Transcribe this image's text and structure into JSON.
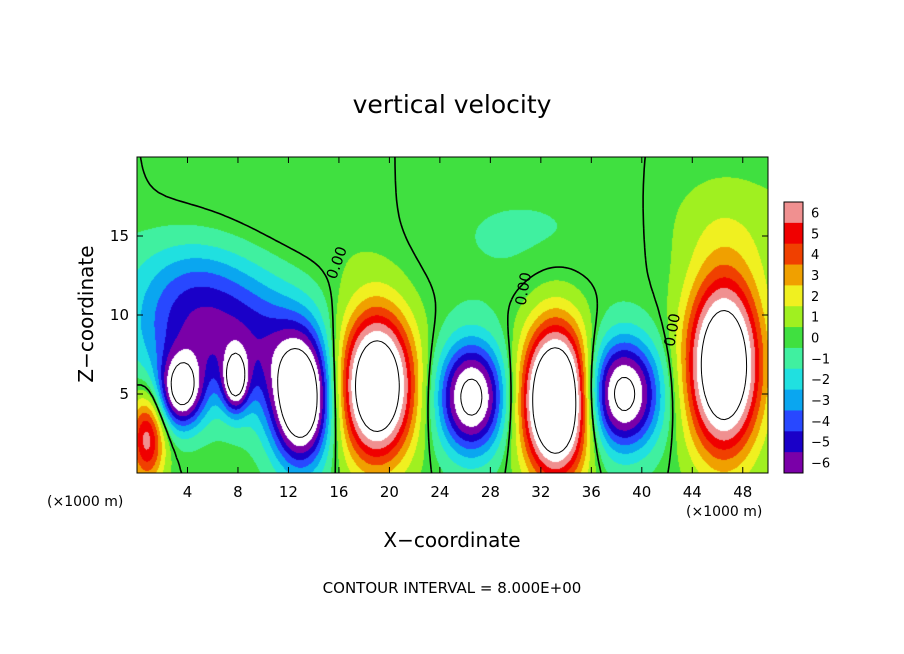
{
  "chart_data": {
    "type": "heatmap",
    "title": "vertical velocity",
    "xlabel": "X−coordinate",
    "ylabel": "Z−coordinate",
    "x_unit_left": "(×1000 m)",
    "x_unit_right": "(×1000 m)",
    "xlim": [
      0,
      50
    ],
    "ylim": [
      0,
      20
    ],
    "xticks": [
      4,
      8,
      12,
      16,
      20,
      24,
      28,
      32,
      36,
      40,
      44,
      48
    ],
    "yticks": [
      5,
      10,
      15
    ],
    "contour_interval_text": "CONTOUR INTERVAL = 8.000E+00",
    "contour_label": "0.00",
    "colorbar": {
      "levels": [
        -6,
        -5,
        -4,
        -3,
        -2,
        -1,
        0,
        1,
        2,
        3,
        4,
        5,
        6
      ],
      "labels": [
        "−6",
        "−5",
        "−4",
        "−3",
        "−2",
        "−1",
        "0",
        "1",
        "2",
        "3",
        "4",
        "5",
        "6"
      ],
      "colors": [
        "#7a00a8",
        "#1a00c8",
        "#2848ff",
        "#0aa6f0",
        "#20e0e0",
        "#40f0a0",
        "#40e040",
        "#a0f020",
        "#f0f020",
        "#f0a000",
        "#f04000",
        "#f00000",
        "#f09090"
      ]
    },
    "features": [
      {
        "kind": "updraft",
        "x": 19.0,
        "z": 5.5,
        "sx": 2.0,
        "sz": 3.2,
        "amp": 12
      },
      {
        "kind": "updraft",
        "x": 33.2,
        "z": 4.6,
        "sx": 1.8,
        "sz": 3.2,
        "amp": 14
      },
      {
        "kind": "updraft",
        "x": 46.5,
        "z": 6.8,
        "sx": 2.0,
        "sz": 3.8,
        "amp": 12
      },
      {
        "kind": "updraft",
        "x": 0.8,
        "z": 2.2,
        "sx": 1.0,
        "sz": 2.0,
        "amp": 6
      },
      {
        "kind": "downdraft",
        "x": 13.0,
        "z": 4.6,
        "sx": 1.6,
        "sz": 2.8,
        "amp": -11
      },
      {
        "kind": "downdraft",
        "x": 26.5,
        "z": 4.8,
        "sx": 1.8,
        "sz": 2.4,
        "amp": -9
      },
      {
        "kind": "downdraft",
        "x": 38.5,
        "z": 5.0,
        "sx": 2.0,
        "sz": 2.4,
        "amp": -9
      },
      {
        "kind": "downdraft",
        "x": 3.5,
        "z": 5.2,
        "sx": 1.2,
        "sz": 1.6,
        "amp": -8
      },
      {
        "kind": "downdraft",
        "x": 7.8,
        "z": 5.8,
        "sx": 0.7,
        "sz": 1.3,
        "amp": -7
      },
      {
        "kind": "downdraft",
        "x": 4.5,
        "z": 9.5,
        "sx": 3.5,
        "sz": 3.0,
        "amp": -5
      },
      {
        "kind": "downdraft",
        "x": 10.0,
        "z": 8.0,
        "sx": 3.0,
        "sz": 3.0,
        "amp": -3.5
      }
    ]
  }
}
